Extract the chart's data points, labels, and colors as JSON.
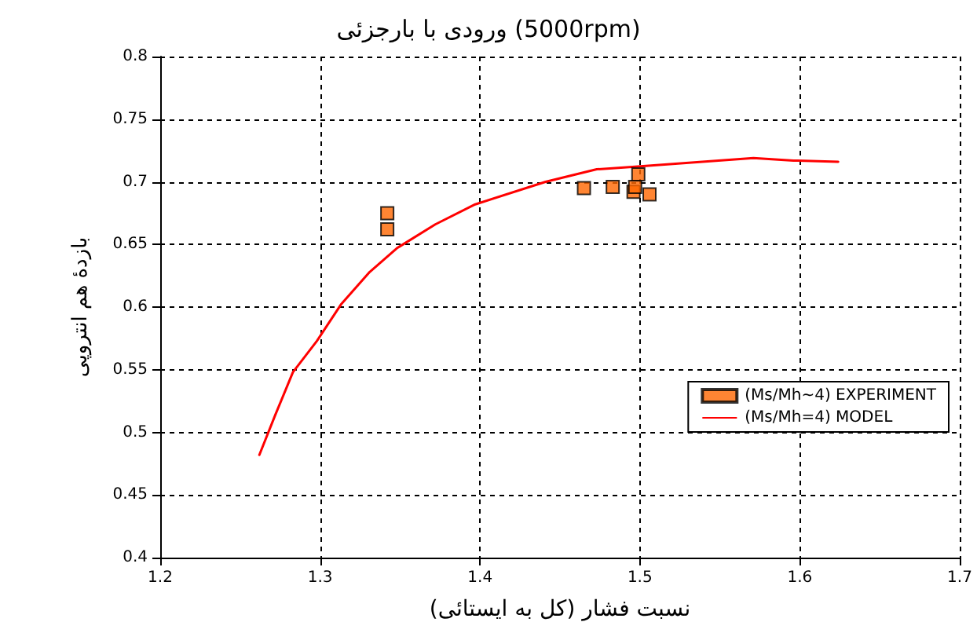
{
  "chart_data": {
    "type": "scatter",
    "title": "ورودی با بارجزئی (5000rpm)",
    "xlabel": "نسبت فشار (کل به ایستائی)",
    "ylabel": "بازدهٔ هم انتروپی",
    "xlim": [
      1.2,
      1.7
    ],
    "xticks": [
      1.2,
      1.3,
      1.4,
      1.5,
      1.6,
      1.7
    ],
    "ylim": [
      0.4,
      0.8
    ],
    "yticks": [
      0.4,
      0.45,
      0.5,
      0.55,
      0.6,
      0.65,
      0.7,
      0.75,
      0.8
    ],
    "grid": true,
    "legend": "right",
    "series": [
      {
        "name": "(Ms/Mh~4) EXPERIMENT",
        "marker": "square",
        "color": "#ff6600",
        "x": [
          1.342,
          1.342,
          1.465,
          1.483,
          1.496,
          1.497,
          1.499,
          1.506
        ],
        "values": [
          0.675,
          0.662,
          0.695,
          0.696,
          0.692,
          0.696,
          0.706,
          0.69
        ]
      },
      {
        "name": "(Ms/Mh=4) MODEL",
        "type": "line",
        "marker": "none",
        "line_style": "solid",
        "color": "#ff0000",
        "x": [
          1.262,
          1.272,
          1.283,
          1.298,
          1.313,
          1.331,
          1.348,
          1.372,
          1.397,
          1.441,
          1.473,
          1.497,
          1.539,
          1.571,
          1.596,
          1.624
        ],
        "values": [
          0.482,
          0.514,
          0.548,
          0.573,
          0.602,
          0.628,
          0.647,
          0.666,
          0.682,
          0.7,
          0.71,
          0.712,
          0.716,
          0.719,
          0.717,
          0.716
        ]
      }
    ]
  }
}
